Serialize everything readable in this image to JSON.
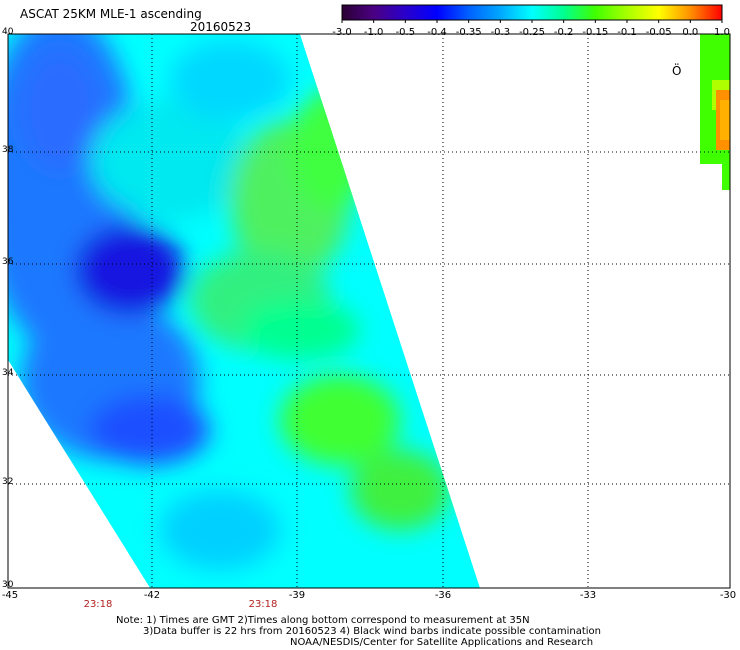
{
  "header": {
    "title": "ASCAT 25KM MLE-1 ascending",
    "date": "20160523"
  },
  "colorbar": {
    "tick_labels": [
      "-3.0",
      "-1.0",
      "-0.5",
      "-0.4",
      "-0.35",
      "-0.3",
      "-0.25",
      "-0.2",
      "-0.15",
      "-0.1",
      "-0.05",
      "0.0",
      "1.0"
    ],
    "colors": [
      "#2a0033",
      "#4b0082",
      "#2a00cc",
      "#0000ff",
      "#0060ff",
      "#00a8ff",
      "#00ffff",
      "#00ff90",
      "#40ff00",
      "#a8ff00",
      "#ffff00",
      "#ff9000",
      "#ff0000"
    ]
  },
  "map": {
    "lat_labels": [
      "40",
      "38",
      "36",
      "34",
      "32",
      "30"
    ],
    "lon_labels": [
      "-45",
      "-42",
      "-39",
      "-36",
      "-33",
      "-30"
    ],
    "time_labels": [
      "23:18",
      "23:18"
    ],
    "lon_range": [
      -45,
      -30
    ],
    "lat_range": [
      30,
      40
    ],
    "grid": "dotted"
  },
  "notes": {
    "line1": "Note: 1) Times are GMT 2)Times along bottom correspond to measurement at 35N",
    "line2": "3)Data buffer is 22 hrs from 20160523 4) Black wind barbs indicate possible contamination",
    "line3": "NOAA/NESDIS/Center for Satellite Applications and Research"
  }
}
